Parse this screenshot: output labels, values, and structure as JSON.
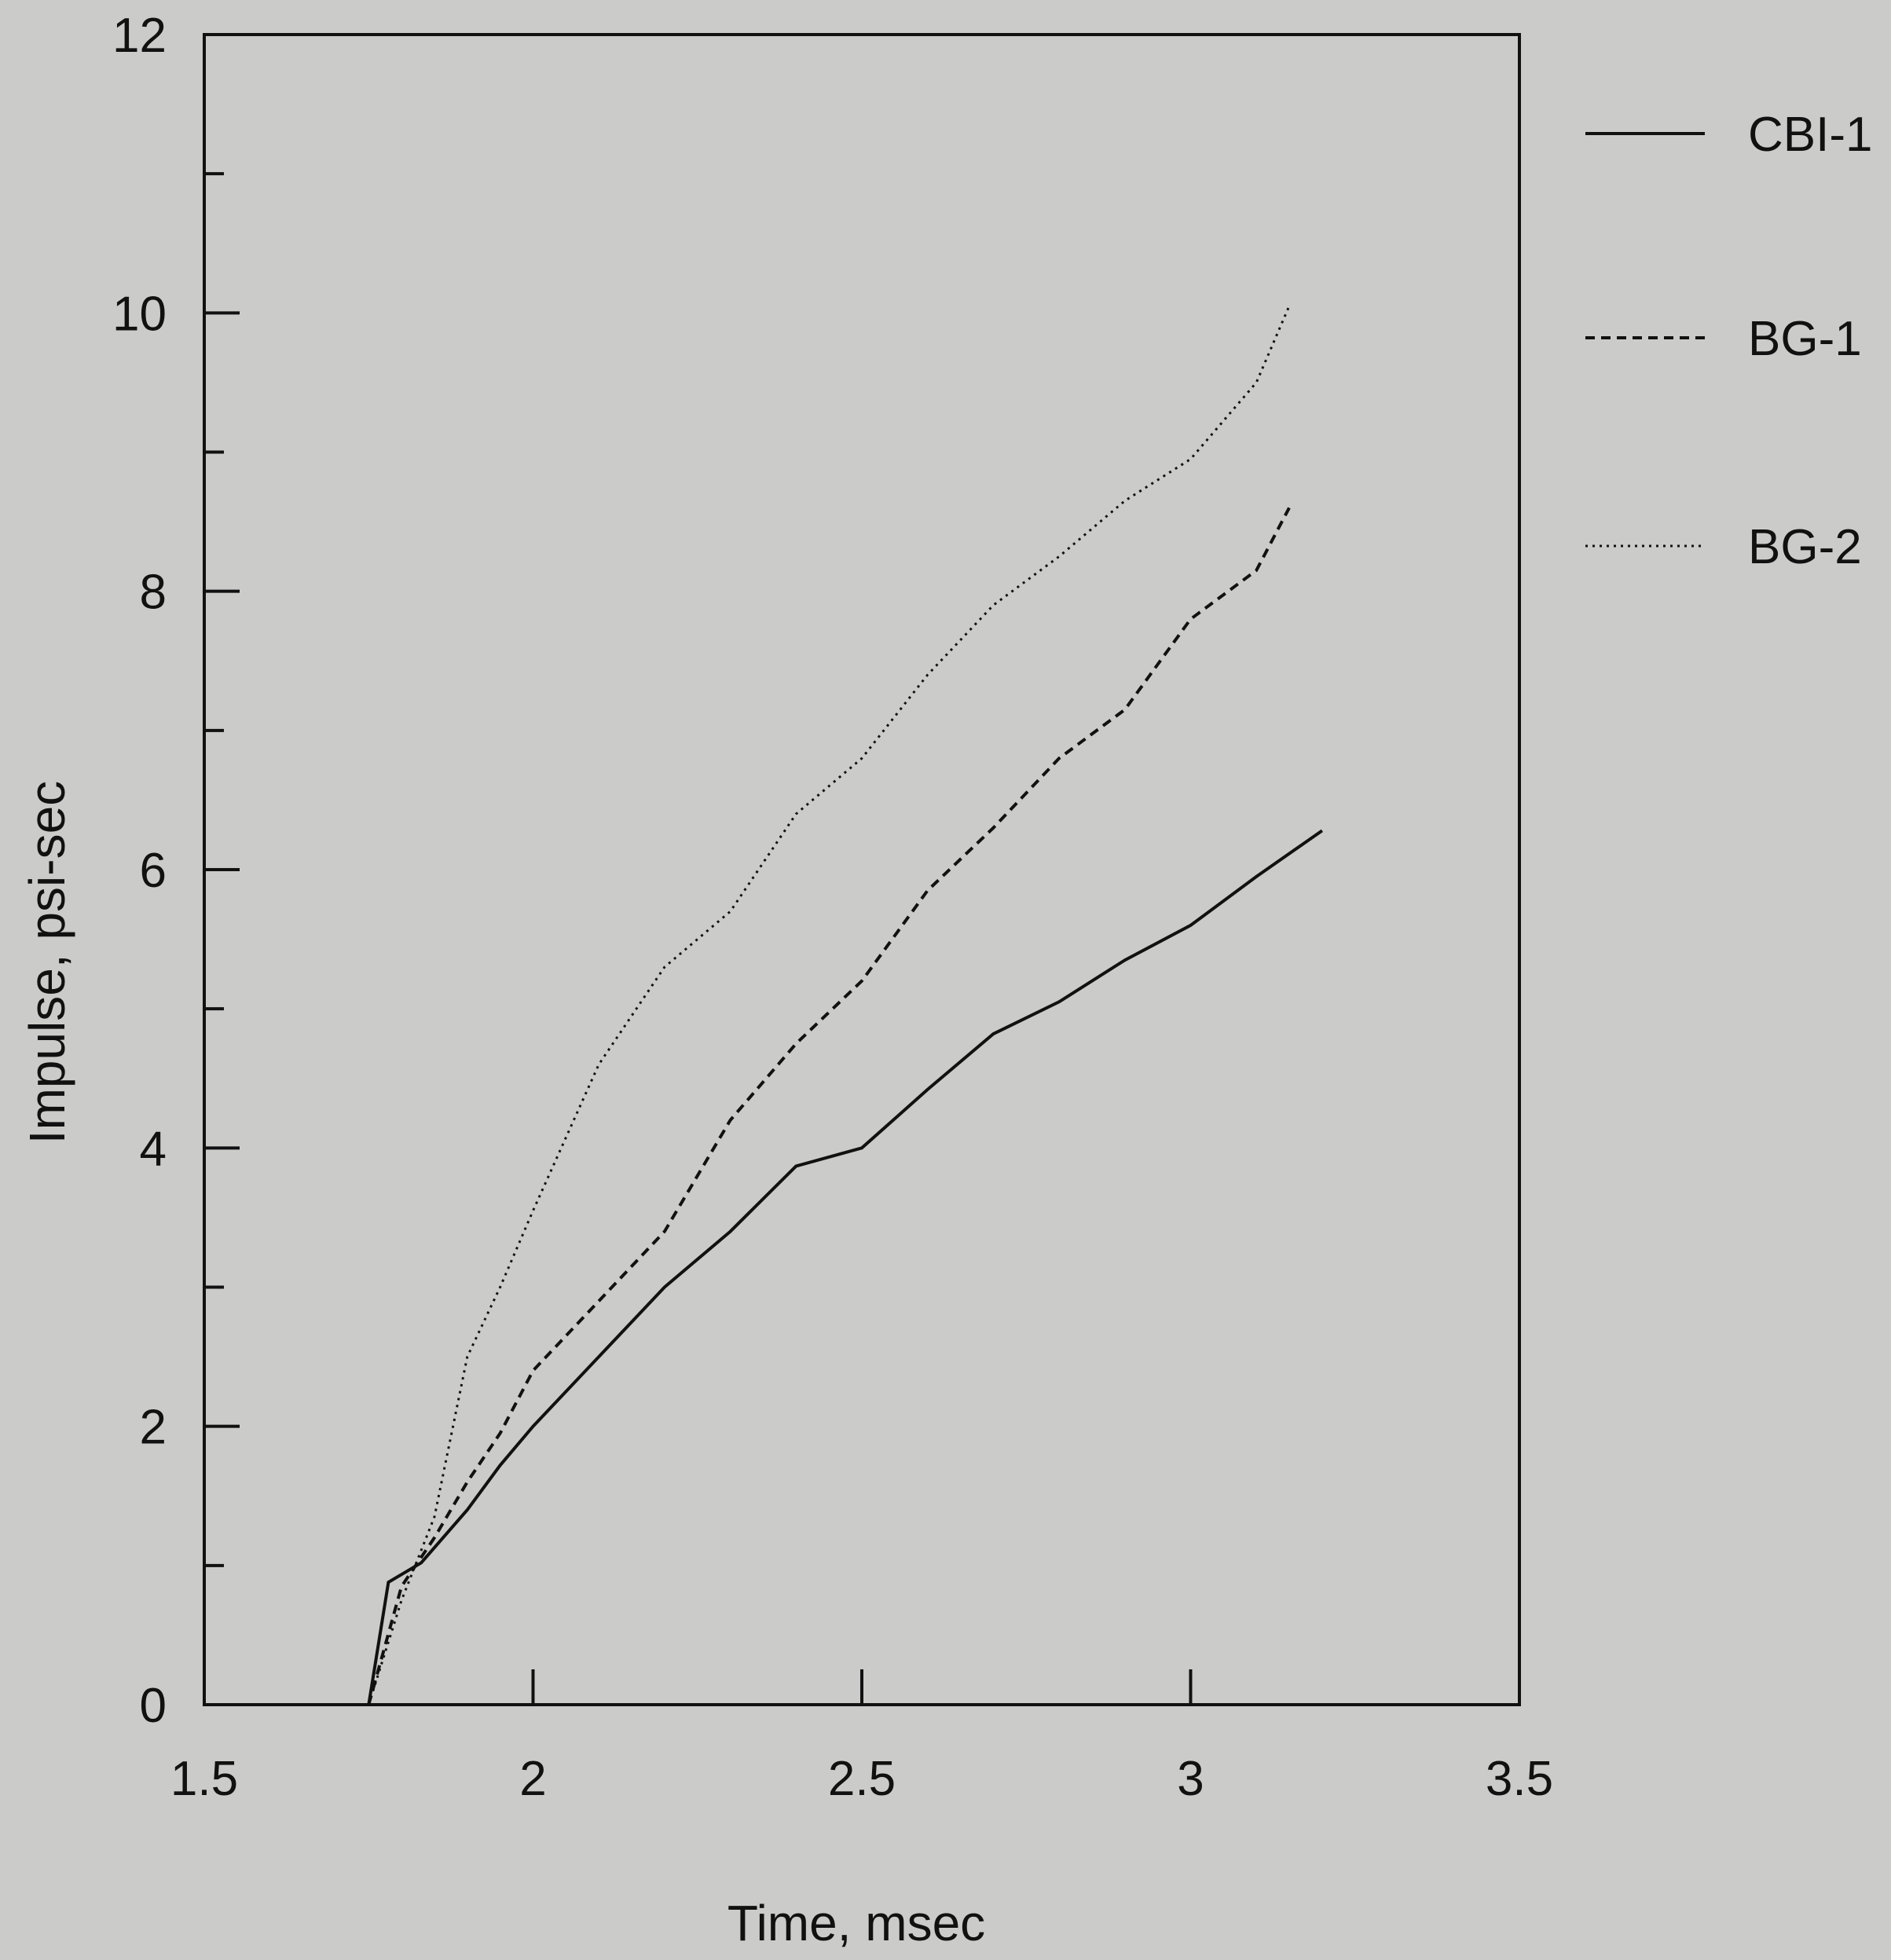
{
  "chart_data": {
    "type": "line",
    "title": "",
    "xlabel": "Time, msec",
    "ylabel": "Impulse, psi-sec",
    "xlim": [
      1.5,
      3.5
    ],
    "ylim": [
      0,
      12
    ],
    "x_ticks": [
      1.5,
      2,
      2.5,
      3,
      3.5
    ],
    "x_tick_labels": [
      "1.5",
      "2",
      "2.5",
      "3",
      "3.5"
    ],
    "y_ticks": [
      0,
      2,
      4,
      6,
      8,
      10,
      12
    ],
    "y_tick_labels": [
      "0",
      "2",
      "4",
      "6",
      "8",
      "10",
      "12"
    ],
    "grid": false,
    "legend_position": "right",
    "series": [
      {
        "name": "CBI-1",
        "line_style": "solid",
        "points": [
          [
            1.75,
            0
          ],
          [
            1.78,
            0.88
          ],
          [
            1.83,
            1.02
          ],
          [
            1.9,
            1.4
          ],
          [
            1.95,
            1.72
          ],
          [
            2.0,
            2.0
          ],
          [
            2.1,
            2.5
          ],
          [
            2.2,
            3.0
          ],
          [
            2.3,
            3.4
          ],
          [
            2.4,
            3.87
          ],
          [
            2.5,
            4.0
          ],
          [
            2.6,
            4.42
          ],
          [
            2.7,
            4.82
          ],
          [
            2.8,
            5.05
          ],
          [
            2.9,
            5.35
          ],
          [
            3.0,
            5.6
          ],
          [
            3.1,
            5.95
          ],
          [
            3.2,
            6.28
          ]
        ]
      },
      {
        "name": "BG-1",
        "line_style": "dashed",
        "points": [
          [
            1.75,
            0
          ],
          [
            1.8,
            0.85
          ],
          [
            1.85,
            1.2
          ],
          [
            1.9,
            1.6
          ],
          [
            1.95,
            1.95
          ],
          [
            2.0,
            2.4
          ],
          [
            2.1,
            2.9
          ],
          [
            2.2,
            3.4
          ],
          [
            2.3,
            4.2
          ],
          [
            2.4,
            4.75
          ],
          [
            2.5,
            5.2
          ],
          [
            2.6,
            5.85
          ],
          [
            2.7,
            6.3
          ],
          [
            2.8,
            6.8
          ],
          [
            2.9,
            7.15
          ],
          [
            3.0,
            7.8
          ],
          [
            3.1,
            8.15
          ],
          [
            3.15,
            8.6
          ]
        ]
      },
      {
        "name": "BG-2",
        "line_style": "dotted",
        "points": [
          [
            1.75,
            0
          ],
          [
            1.8,
            0.75
          ],
          [
            1.85,
            1.35
          ],
          [
            1.9,
            2.5
          ],
          [
            1.95,
            3.0
          ],
          [
            2.0,
            3.55
          ],
          [
            2.1,
            4.6
          ],
          [
            2.2,
            5.3
          ],
          [
            2.3,
            5.7
          ],
          [
            2.4,
            6.4
          ],
          [
            2.5,
            6.8
          ],
          [
            2.6,
            7.4
          ],
          [
            2.7,
            7.9
          ],
          [
            2.8,
            8.25
          ],
          [
            2.9,
            8.65
          ],
          [
            3.0,
            8.95
          ],
          [
            3.1,
            9.5
          ],
          [
            3.15,
            10.05
          ]
        ]
      }
    ]
  }
}
